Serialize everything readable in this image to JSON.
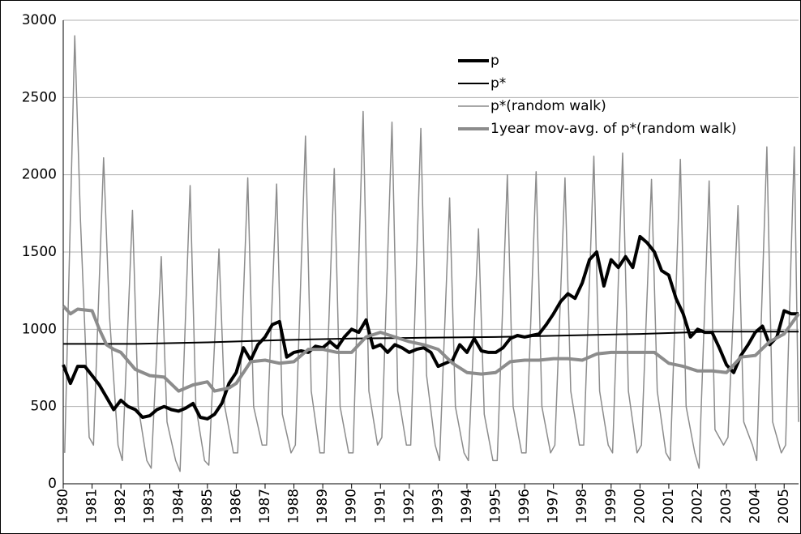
{
  "chart_data": {
    "type": "line",
    "xlim": [
      1980,
      2005.5
    ],
    "xticks": [
      1980,
      1981,
      1982,
      1983,
      1984,
      1985,
      1986,
      1987,
      1988,
      1989,
      1990,
      1991,
      1992,
      1993,
      1994,
      1995,
      1996,
      1997,
      1998,
      1999,
      2000,
      2001,
      2002,
      2003,
      2004,
      2005
    ],
    "ylim": [
      0,
      3000
    ],
    "yticks": [
      0,
      500,
      1000,
      1500,
      2000,
      2500,
      3000
    ],
    "grid": true,
    "legend": "top-right",
    "series": [
      {
        "name": "p",
        "color": "#000000",
        "width": 4,
        "x": [
          1980,
          1980.25,
          1980.5,
          1980.75,
          1981,
          1981.25,
          1981.5,
          1981.75,
          1982,
          1982.25,
          1982.5,
          1982.75,
          1983,
          1983.25,
          1983.5,
          1983.75,
          1984,
          1984.25,
          1984.5,
          1984.75,
          1985,
          1985.25,
          1985.5,
          1985.75,
          1986,
          1986.25,
          1986.5,
          1986.75,
          1987,
          1987.25,
          1987.5,
          1987.75,
          1988,
          1988.25,
          1988.5,
          1988.75,
          1989,
          1989.25,
          1989.5,
          1989.75,
          1990,
          1990.25,
          1990.5,
          1990.75,
          1991,
          1991.25,
          1991.5,
          1991.75,
          1992,
          1992.25,
          1992.5,
          1992.75,
          1993,
          1993.25,
          1993.5,
          1993.75,
          1994,
          1994.25,
          1994.5,
          1994.75,
          1995,
          1995.25,
          1995.5,
          1995.75,
          1996,
          1996.25,
          1996.5,
          1996.75,
          1997,
          1997.25,
          1997.5,
          1997.75,
          1998,
          1998.25,
          1998.5,
          1998.75,
          1999,
          1999.25,
          1999.5,
          1999.75,
          2000,
          2000.25,
          2000.5,
          2000.75,
          2001,
          2001.25,
          2001.5,
          2001.75,
          2002,
          2002.25,
          2002.5,
          2002.75,
          2003,
          2003.25,
          2003.5,
          2003.75,
          2004,
          2004.25,
          2004.5,
          2004.75,
          2005,
          2005.25,
          2005.5
        ],
        "values": [
          770,
          650,
          760,
          760,
          700,
          640,
          560,
          480,
          540,
          500,
          480,
          430,
          440,
          480,
          500,
          480,
          470,
          490,
          520,
          430,
          420,
          450,
          520,
          650,
          720,
          880,
          800,
          900,
          950,
          1030,
          1050,
          820,
          850,
          860,
          850,
          890,
          880,
          920,
          880,
          950,
          1000,
          980,
          1060,
          880,
          900,
          850,
          900,
          880,
          850,
          870,
          880,
          850,
          760,
          780,
          800,
          900,
          850,
          940,
          860,
          850,
          850,
          880,
          940,
          960,
          950,
          960,
          970,
          1030,
          1100,
          1180,
          1230,
          1200,
          1300,
          1450,
          1500,
          1280,
          1450,
          1400,
          1470,
          1400,
          1600,
          1560,
          1500,
          1380,
          1350,
          1200,
          1100,
          950,
          1000,
          980,
          980,
          880,
          770,
          720,
          830,
          900,
          980,
          1020,
          900,
          950,
          1120,
          1100,
          1100
        ]
      },
      {
        "name": "p*",
        "color": "#000000",
        "width": 2,
        "x": [
          1980,
          1982.5,
          1985,
          1987.5,
          1990,
          1992.5,
          1995,
          1997.5,
          2000,
          2002.5,
          2005.5
        ],
        "values": [
          905,
          905,
          915,
          930,
          940,
          945,
          950,
          960,
          970,
          985,
          985
        ]
      },
      {
        "name": "p*(random walk)",
        "color": "#8c8c8c",
        "width": 1.5,
        "x": [
          1980.05,
          1980.4,
          1980.6,
          1980.9,
          1981.05,
          1981.4,
          1981.6,
          1981.9,
          1982.05,
          1982.4,
          1982.6,
          1982.9,
          1983.05,
          1983.4,
          1983.6,
          1983.9,
          1984.05,
          1984.4,
          1984.6,
          1984.9,
          1985.05,
          1985.4,
          1985.6,
          1985.9,
          1986.05,
          1986.4,
          1986.6,
          1986.9,
          1987.05,
          1987.4,
          1987.6,
          1987.9,
          1988.05,
          1988.4,
          1988.6,
          1988.9,
          1989.05,
          1989.4,
          1989.6,
          1989.9,
          1990.05,
          1990.4,
          1990.6,
          1990.9,
          1991.05,
          1991.4,
          1991.6,
          1991.9,
          1992.05,
          1992.4,
          1992.6,
          1992.9,
          1993.05,
          1993.4,
          1993.6,
          1993.9,
          1994.05,
          1994.4,
          1994.6,
          1994.9,
          1995.05,
          1995.4,
          1995.6,
          1995.9,
          1996.05,
          1996.4,
          1996.6,
          1996.9,
          1997.05,
          1997.4,
          1997.6,
          1997.9,
          1998.05,
          1998.4,
          1998.6,
          1998.9,
          1999.05,
          1999.4,
          1999.6,
          1999.9,
          2000.05,
          2000.4,
          2000.6,
          2000.9,
          2001.05,
          2001.4,
          2001.6,
          2001.9,
          2002.05,
          2002.4,
          2002.6,
          2002.9,
          2003.05,
          2003.4,
          2003.6,
          2003.9,
          2004.05,
          2004.4,
          2004.6,
          2004.9,
          2005.05,
          2005.35,
          2005.5
        ],
        "values": [
          200,
          2900,
          1700,
          300,
          250,
          2110,
          1100,
          250,
          150,
          1770,
          500,
          150,
          100,
          1470,
          400,
          150,
          80,
          1930,
          500,
          150,
          120,
          1520,
          500,
          200,
          200,
          1980,
          500,
          250,
          250,
          1940,
          450,
          200,
          250,
          2250,
          600,
          200,
          200,
          2040,
          500,
          200,
          200,
          2410,
          600,
          250,
          300,
          2340,
          600,
          250,
          250,
          2300,
          700,
          250,
          150,
          1850,
          500,
          200,
          150,
          1650,
          450,
          150,
          150,
          2000,
          500,
          200,
          200,
          2020,
          500,
          200,
          250,
          1980,
          600,
          250,
          250,
          2120,
          600,
          250,
          200,
          2140,
          600,
          200,
          250,
          1970,
          600,
          200,
          150,
          2100,
          500,
          200,
          100,
          1960,
          350,
          250,
          300,
          1800,
          400,
          250,
          150,
          2180,
          400,
          200,
          250,
          2180,
          400
        ]
      },
      {
        "name": "1year mov-avg. of p*(random walk)",
        "color": "#8c8c8c",
        "width": 4,
        "x": [
          1980,
          1980.25,
          1980.5,
          1981,
          1981.25,
          1981.5,
          1981.75,
          1982,
          1982.5,
          1983,
          1983.5,
          1984,
          1984.5,
          1985,
          1985.25,
          1985.75,
          1986,
          1986.5,
          1987,
          1987.5,
          1988,
          1988.5,
          1989,
          1989.5,
          1990,
          1990.5,
          1991,
          1991.5,
          1992,
          1992.5,
          1993,
          1993.5,
          1994,
          1994.5,
          1995,
          1995.5,
          1996,
          1996.5,
          1997,
          1997.5,
          1998,
          1998.5,
          1999,
          1999.5,
          2000,
          2000.5,
          2001,
          2001.5,
          2002,
          2002.5,
          2003,
          2003.5,
          2004,
          2004.5,
          2005,
          2005.5
        ],
        "values": [
          1150,
          1100,
          1130,
          1120,
          1000,
          900,
          870,
          850,
          740,
          700,
          690,
          600,
          640,
          660,
          600,
          620,
          650,
          790,
          800,
          780,
          790,
          870,
          870,
          850,
          850,
          950,
          980,
          950,
          920,
          900,
          870,
          780,
          720,
          710,
          720,
          790,
          800,
          800,
          810,
          810,
          800,
          840,
          850,
          850,
          850,
          850,
          780,
          760,
          730,
          730,
          720,
          820,
          830,
          920,
          970,
          1100
        ]
      }
    ]
  }
}
